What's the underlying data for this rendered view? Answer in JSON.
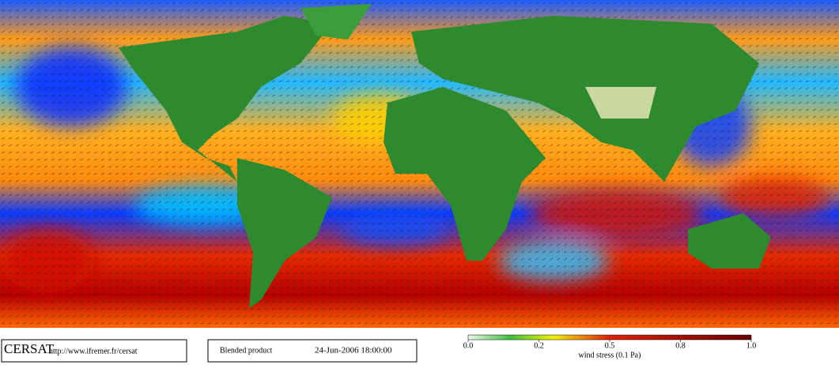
{
  "footer": {
    "logo": "CERSAT",
    "url": "http://www.ifremer.fr/cersat",
    "product": "Blended product",
    "date": "24-Jun-2006 18:00:00"
  },
  "colorbar": {
    "ticks": [
      {
        "value": 0,
        "label": "0.0"
      },
      0.2,
      0.5,
      0.8,
      {
        "value": 1,
        "label": "1.0"
      }
    ],
    "label": "wind stress (0.1 Pa)"
  }
}
